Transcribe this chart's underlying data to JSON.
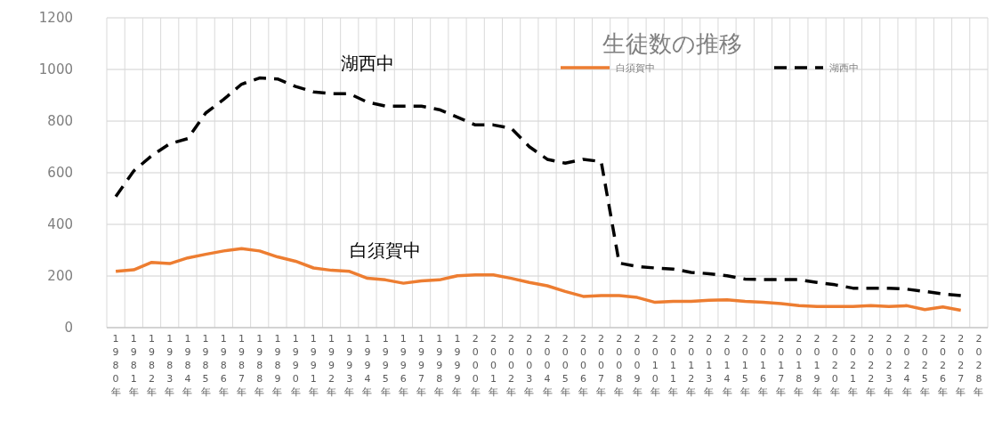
{
  "chart_data": {
    "type": "line",
    "title": "生徒数の推移",
    "categories": [
      "1980年",
      "1981年",
      "1982年",
      "1983年",
      "1984年",
      "1985年",
      "1986年",
      "1987年",
      "1988年",
      "1989年",
      "1990年",
      "1991年",
      "1992年",
      "1993年",
      "1994年",
      "1995年",
      "1996年",
      "1997年",
      "1998年",
      "1999年",
      "2000年",
      "2001年",
      "2002年",
      "2003年",
      "2004年",
      "2005年",
      "2006年",
      "2007年",
      "2008年",
      "2009年",
      "2010年",
      "2011年",
      "2012年",
      "2013年",
      "2014年",
      "2015年",
      "2016年",
      "2017年",
      "2018年",
      "2019年",
      "2020年",
      "2021年",
      "2022年",
      "2023年",
      "2024年",
      "2025年",
      "2026年",
      "2027年",
      "2028年"
    ],
    "series": [
      {
        "name": "白須賀中",
        "color": "#ed7d31",
        "line_style": "solid",
        "values": [
          218,
          224,
          253,
          248,
          270,
          284,
          297,
          306,
          297,
          274,
          257,
          231,
          222,
          218,
          191,
          185,
          172,
          181,
          185,
          201,
          204,
          204,
          191,
          175,
          162,
          140,
          121,
          124,
          124,
          117,
          98,
          102,
          102,
          106,
          108,
          102,
          98,
          93,
          85,
          82,
          82,
          82,
          85,
          82,
          85,
          70,
          80,
          67,
          null
        ]
      },
      {
        "name": "湖西中",
        "color": "#000000",
        "line_style": "dashed",
        "values": [
          508,
          607,
          666,
          712,
          732,
          831,
          884,
          943,
          967,
          963,
          934,
          913,
          906,
          906,
          873,
          858,
          858,
          858,
          844,
          815,
          785,
          785,
          772,
          701,
          652,
          637,
          652,
          643,
          250,
          237,
          231,
          227,
          214,
          209,
          201,
          188,
          186,
          186,
          186,
          175,
          166,
          153,
          153,
          153,
          149,
          140,
          131,
          124,
          null
        ]
      }
    ],
    "ylim": [
      0,
      1200
    ],
    "yticks": [
      0,
      200,
      400,
      600,
      800,
      1000,
      1200
    ],
    "grid": true,
    "legend": "top",
    "annotations": [
      "湖西中",
      "白須賀中"
    ]
  }
}
